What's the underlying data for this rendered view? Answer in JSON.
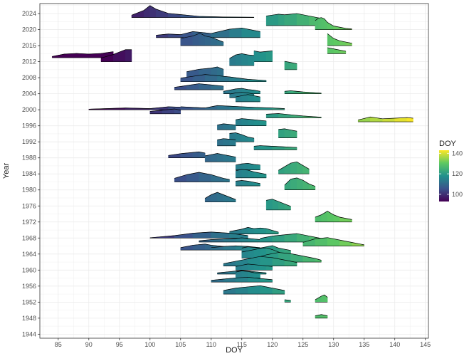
{
  "chart_data": {
    "type": "ridgeline",
    "xlabel": "DOY",
    "ylabel": "Year",
    "xlim": [
      82,
      145.5
    ],
    "ylim": [
      1943,
      2026.5
    ],
    "xticks": [
      85,
      90,
      95,
      100,
      105,
      110,
      115,
      120,
      125,
      130,
      135,
      140,
      145
    ],
    "yticks": [
      1944,
      1948,
      1952,
      1956,
      1960,
      1964,
      1968,
      1972,
      1976,
      1980,
      1984,
      1988,
      1992,
      1996,
      2000,
      2004,
      2008,
      2012,
      2016,
      2020,
      2024
    ],
    "grid": true,
    "legend": {
      "title": "DOY",
      "position": "right",
      "ticks": [
        100,
        120,
        140
      ],
      "range": [
        93,
        143
      ],
      "colors": [
        "#440154",
        "#3b528b",
        "#21918c",
        "#5ec962",
        "#fde725"
      ]
    },
    "ridge_height_years": 3.0,
    "series": [
      {
        "year": 2023,
        "x": [
          97,
          99,
          100,
          101,
          103,
          105,
          108,
          112,
          117
        ],
        "d": [
          0.2,
          0.6,
          1.0,
          0.7,
          0.35,
          0.25,
          0.1,
          0.05,
          0.03
        ]
      },
      {
        "year": 2021,
        "x": [
          119,
          121,
          122,
          124,
          126,
          128
        ],
        "d": [
          0.8,
          0.95,
          0.9,
          1.0,
          0.8,
          0.6
        ]
      },
      {
        "year": 2020,
        "x": [
          127,
          127.5,
          128,
          128.5,
          129,
          130,
          132,
          133
        ],
        "d": [
          0.75,
          0.95,
          1.0,
          0.9,
          0.6,
          0.3,
          0.1,
          0.05
        ]
      },
      {
        "year": 2018,
        "x": [
          101,
          103,
          105,
          107,
          110,
          113,
          115,
          118
        ],
        "d": [
          0.2,
          0.3,
          0.25,
          0.5,
          0.35,
          0.7,
          0.8,
          0.5
        ]
      },
      {
        "year": 2016,
        "x": [
          105,
          107,
          108,
          108.5,
          109,
          110,
          111,
          112
        ],
        "d": [
          0.6,
          0.8,
          1.0,
          0.95,
          0.8,
          0.7,
          0.5,
          0.3
        ]
      },
      {
        "year": 2016,
        "x": [
          129,
          129.5,
          130,
          131,
          132,
          133
        ],
        "d": [
          1.0,
          0.8,
          0.6,
          0.4,
          0.3,
          0.2
        ]
      },
      {
        "year": 2014,
        "x": [
          129,
          130,
          131,
          132
        ],
        "d": [
          0.5,
          0.4,
          0.3,
          0.2
        ]
      },
      {
        "year": 2013,
        "x": [
          84,
          86,
          88,
          90,
          92,
          94
        ],
        "d": [
          0.1,
          0.3,
          0.35,
          0.3,
          0.35,
          0.5
        ]
      },
      {
        "year": 2012,
        "x": [
          92,
          94,
          96,
          97
        ],
        "d": [
          0.3,
          0.6,
          1.0,
          1.0
        ]
      },
      {
        "year": 2011,
        "x": [
          113,
          114,
          115,
          116,
          117
        ],
        "d": [
          0.6,
          0.9,
          1.0,
          0.9,
          0.85
        ]
      },
      {
        "year": 2012,
        "x": [
          117,
          118,
          119,
          120
        ],
        "d": [
          0.9,
          0.8,
          0.85,
          0.9
        ]
      },
      {
        "year": 2010,
        "x": [
          122,
          123,
          124
        ],
        "d": [
          0.7,
          0.6,
          0.5
        ]
      },
      {
        "year": 2008,
        "x": [
          106,
          108,
          110,
          111,
          112
        ],
        "d": [
          0.5,
          0.7,
          0.8,
          0.9,
          0.7
        ]
      },
      {
        "year": 2007,
        "x": [
          105,
          107,
          109,
          111,
          113,
          116,
          119
        ],
        "d": [
          0.3,
          0.45,
          0.6,
          0.5,
          0.4,
          0.2,
          0.1
        ]
      },
      {
        "year": 2005,
        "x": [
          104,
          106,
          108,
          110,
          112
        ],
        "d": [
          0.2,
          0.35,
          0.5,
          0.4,
          0.3
        ]
      },
      {
        "year": 2004,
        "x": [
          122,
          123,
          124,
          125,
          128
        ],
        "d": [
          0.2,
          0.25,
          0.2,
          0.15,
          0.05
        ]
      },
      {
        "year": 2004,
        "x": [
          112,
          113,
          114,
          115,
          116,
          117,
          118
        ],
        "d": [
          0.2,
          0.3,
          0.4,
          0.45,
          0.35,
          0.3,
          0.2
        ]
      },
      {
        "year": 2003,
        "x": [
          113,
          114,
          115,
          116,
          117
        ],
        "d": [
          0.3,
          0.4,
          0.45,
          0.4,
          0.3
        ]
      },
      {
        "year": 2002,
        "x": [
          114,
          115,
          116,
          117,
          118
        ],
        "d": [
          0.4,
          0.5,
          0.6,
          0.5,
          0.4
        ]
      },
      {
        "year": 2000,
        "x": [
          90,
          93,
          96,
          100,
          103,
          106,
          109
        ],
        "d": [
          0.05,
          0.1,
          0.15,
          0.1,
          0.25,
          0.2,
          0.15
        ]
      },
      {
        "year": 2000,
        "x": [
          105,
          107,
          109,
          111,
          113,
          115,
          117,
          120,
          122
        ],
        "d": [
          0.25,
          0.2,
          0.15,
          0.35,
          0.3,
          0.25,
          0.2,
          0.15,
          0.1
        ]
      },
      {
        "year": 1999,
        "x": [
          100,
          102,
          104,
          105
        ],
        "d": [
          0.2,
          0.3,
          0.4,
          0.3
        ]
      },
      {
        "year": 1998,
        "x": [
          119,
          121,
          123,
          125,
          128
        ],
        "d": [
          0.3,
          0.35,
          0.25,
          0.15,
          0.05
        ]
      },
      {
        "year": 1997,
        "x": [
          134,
          136,
          138,
          140,
          142,
          143
        ],
        "d": [
          0.15,
          0.4,
          0.25,
          0.3,
          0.35,
          0.3
        ]
      },
      {
        "year": 1996,
        "x": [
          114,
          115,
          116,
          117,
          118,
          119
        ],
        "d": [
          0.5,
          0.6,
          0.55,
          0.5,
          0.45,
          0.4
        ]
      },
      {
        "year": 1995,
        "x": [
          111,
          112,
          113,
          114
        ],
        "d": [
          0.4,
          0.5,
          0.45,
          0.4
        ]
      },
      {
        "year": 1993,
        "x": [
          121,
          122,
          123,
          124
        ],
        "d": [
          0.7,
          0.75,
          0.65,
          0.55
        ]
      },
      {
        "year": 1992,
        "x": [
          113,
          114,
          115,
          116,
          117
        ],
        "d": [
          0.7,
          0.75,
          0.6,
          0.4,
          0.3
        ]
      },
      {
        "year": 1991,
        "x": [
          111,
          112,
          113,
          114
        ],
        "d": [
          0.5,
          0.6,
          0.55,
          0.5
        ]
      },
      {
        "year": 1990,
        "x": [
          117,
          118,
          120,
          122,
          124
        ],
        "d": [
          0.3,
          0.35,
          0.3,
          0.25,
          0.2
        ]
      },
      {
        "year": 1988,
        "x": [
          103,
          105,
          107,
          108,
          109
        ],
        "d": [
          0.2,
          0.35,
          0.45,
          0.5,
          0.4
        ]
      },
      {
        "year": 1987,
        "x": [
          109,
          110,
          111,
          112,
          113,
          114
        ],
        "d": [
          0.5,
          0.6,
          0.7,
          0.6,
          0.5,
          0.4
        ]
      },
      {
        "year": 1985,
        "x": [
          114,
          115,
          116,
          117,
          118
        ],
        "d": [
          0.4,
          0.5,
          0.55,
          0.45,
          0.4
        ]
      },
      {
        "year": 1984,
        "x": [
          121,
          122,
          123,
          124,
          125,
          126
        ],
        "d": [
          0.3,
          0.6,
          0.9,
          1.0,
          0.7,
          0.4
        ]
      },
      {
        "year": 1983,
        "x": [
          114,
          115,
          116,
          117,
          118,
          119
        ],
        "d": [
          0.6,
          0.7,
          0.65,
          0.5,
          0.4,
          0.3
        ]
      },
      {
        "year": 1982,
        "x": [
          104,
          106,
          108,
          110,
          112,
          113
        ],
        "d": [
          0.3,
          0.6,
          0.8,
          0.6,
          0.3,
          0.2
        ]
      },
      {
        "year": 1981,
        "x": [
          114,
          115,
          116,
          117,
          118
        ],
        "d": [
          0.4,
          0.45,
          0.4,
          0.3,
          0.2
        ]
      },
      {
        "year": 1980,
        "x": [
          122,
          123,
          124,
          125,
          126,
          127
        ],
        "d": [
          0.4,
          0.9,
          1.0,
          0.8,
          0.5,
          0.3
        ]
      },
      {
        "year": 1977,
        "x": [
          109,
          110,
          111,
          112,
          113,
          114
        ],
        "d": [
          0.3,
          0.6,
          0.8,
          0.6,
          0.4,
          0.2
        ]
      },
      {
        "year": 1975,
        "x": [
          119,
          120,
          121,
          122,
          123
        ],
        "d": [
          0.8,
          0.9,
          0.7,
          0.5,
          0.3
        ]
      },
      {
        "year": 1972,
        "x": [
          127,
          128,
          129,
          130,
          131,
          133
        ],
        "d": [
          0.4,
          0.6,
          0.9,
          0.6,
          0.4,
          0.2
        ]
      },
      {
        "year": 1969,
        "x": [
          113,
          115,
          116,
          117,
          118,
          119,
          120,
          121
        ],
        "d": [
          0.2,
          0.4,
          0.55,
          0.45,
          0.5,
          0.45,
          0.3,
          0.15
        ]
      },
      {
        "year": 1968,
        "x": [
          100,
          104,
          107,
          110,
          113,
          116
        ],
        "d": [
          0.02,
          0.2,
          0.4,
          0.5,
          0.4,
          0.2
        ]
      },
      {
        "year": 1967,
        "x": [
          108,
          110,
          112,
          114,
          115,
          116,
          117,
          118
        ],
        "d": [
          0.1,
          0.2,
          0.25,
          0.3,
          0.35,
          0.3,
          0.25,
          0.2
        ]
      },
      {
        "year": 1967,
        "x": [
          118,
          120,
          122,
          124,
          126,
          128
        ],
        "d": [
          0.3,
          0.5,
          0.6,
          0.7,
          0.5,
          0.3
        ]
      },
      {
        "year": 1966,
        "x": [
          125,
          127,
          129,
          131,
          133,
          135
        ],
        "d": [
          0.3,
          0.6,
          0.7,
          0.5,
          0.3,
          0.1
        ]
      },
      {
        "year": 1965,
        "x": [
          105,
          107,
          109,
          110,
          112,
          113
        ],
        "d": [
          0.2,
          0.4,
          0.5,
          0.4,
          0.3,
          0.2
        ]
      },
      {
        "year": 1965,
        "x": [
          110,
          112,
          114,
          116,
          118
        ],
        "d": [
          0.2,
          0.3,
          0.35,
          0.3,
          0.2
        ]
      },
      {
        "year": 1964,
        "x": [
          115,
          116,
          117,
          118,
          119,
          120,
          121,
          122,
          123
        ],
        "d": [
          0.5,
          0.6,
          0.55,
          0.5,
          0.6,
          0.7,
          0.5,
          0.4,
          0.3
        ]
      },
      {
        "year": 1963,
        "x": [
          115,
          116,
          117,
          118,
          119,
          120,
          121,
          122
        ],
        "d": [
          0.5,
          0.6,
          0.7,
          0.8,
          0.85,
          0.7,
          0.5,
          0.3
        ]
      },
      {
        "year": 1962,
        "x": [
          117,
          119,
          121,
          123,
          125,
          127,
          128
        ],
        "d": [
          0.3,
          0.6,
          0.8,
          0.7,
          0.5,
          0.3,
          0.15
        ]
      },
      {
        "year": 1961,
        "x": [
          112,
          114,
          116,
          118,
          120,
          122,
          124
        ],
        "d": [
          0.2,
          0.4,
          0.6,
          0.8,
          0.7,
          0.5,
          0.3
        ]
      },
      {
        "year": 1960,
        "x": [
          114,
          115,
          116,
          117,
          118,
          119,
          120
        ],
        "d": [
          0.3,
          0.4,
          0.5,
          0.45,
          0.4,
          0.35,
          0.3
        ]
      },
      {
        "year": 1959,
        "x": [
          111,
          113,
          115,
          117,
          119
        ],
        "d": [
          0.1,
          0.2,
          0.3,
          0.2,
          0.1
        ]
      },
      {
        "year": 1958,
        "x": [
          114,
          115,
          116,
          117,
          118
        ],
        "d": [
          0.5,
          0.6,
          0.55,
          0.45,
          0.4
        ]
      },
      {
        "year": 1957,
        "x": [
          110,
          112,
          114,
          116,
          118,
          120
        ],
        "d": [
          0.15,
          0.25,
          0.35,
          0.4,
          0.3,
          0.2
        ]
      },
      {
        "year": 1954,
        "x": [
          112,
          114,
          116,
          118,
          120,
          122
        ],
        "d": [
          0.3,
          0.5,
          0.6,
          0.7,
          0.5,
          0.3
        ]
      },
      {
        "year": 1952,
        "x": [
          127,
          128,
          128.5,
          129
        ],
        "d": [
          0.2,
          0.5,
          0.6,
          0.4
        ]
      },
      {
        "year": 1952,
        "x": [
          122,
          123
        ],
        "d": [
          0.2,
          0.15
        ]
      },
      {
        "year": 1948,
        "x": [
          127,
          128,
          129
        ],
        "d": [
          0.2,
          0.3,
          0.2
        ]
      }
    ]
  }
}
